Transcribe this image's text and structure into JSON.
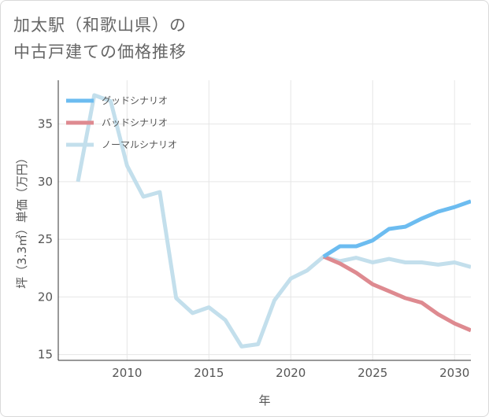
{
  "title_lines": [
    "加太駅（和歌山県）の",
    "中古戸建ての価格推移"
  ],
  "chart_data": {
    "type": "line",
    "title": "加太駅（和歌山県）の中古戸建ての価格推移",
    "xlabel": "年",
    "ylabel": "坪（3.3㎡）単価（万円）",
    "xlim": [
      2005.8,
      2031
    ],
    "ylim": [
      14.5,
      38.8
    ],
    "x_ticks": [
      2010,
      2015,
      2020,
      2025,
      2030
    ],
    "y_ticks": [
      15,
      20,
      25,
      30,
      35
    ],
    "legend_position": "top-left",
    "series": [
      {
        "name": "グッドシナリオ",
        "color": "#6cbcf0",
        "x": [
          2022,
          2023,
          2024,
          2025,
          2026,
          2027,
          2028,
          2029,
          2030,
          2031
        ],
        "values": [
          23.5,
          24.4,
          24.4,
          24.9,
          25.9,
          26.1,
          26.8,
          27.4,
          27.8,
          28.3
        ]
      },
      {
        "name": "バッドシナリオ",
        "color": "#de8a90",
        "x": [
          2022,
          2023,
          2024,
          2025,
          2026,
          2027,
          2028,
          2029,
          2030,
          2031
        ],
        "values": [
          23.5,
          22.9,
          22.1,
          21.1,
          20.5,
          19.9,
          19.5,
          18.5,
          17.7,
          17.1
        ]
      },
      {
        "name": "ノーマルシナリオ",
        "color": "#c3dfec",
        "x": [
          2007,
          2008,
          2009,
          2010,
          2011,
          2012,
          2013,
          2014,
          2015,
          2016,
          2017,
          2018,
          2019,
          2020,
          2021,
          2022,
          2023,
          2024,
          2025,
          2026,
          2027,
          2028,
          2029,
          2030,
          2031
        ],
        "values": [
          30.0,
          37.5,
          37.0,
          31.4,
          28.7,
          29.1,
          19.9,
          18.6,
          19.1,
          18.0,
          15.7,
          15.9,
          19.7,
          21.6,
          22.3,
          23.5,
          23.1,
          23.4,
          23.0,
          23.3,
          23.0,
          23.0,
          22.8,
          23.0,
          22.6
        ]
      }
    ]
  }
}
